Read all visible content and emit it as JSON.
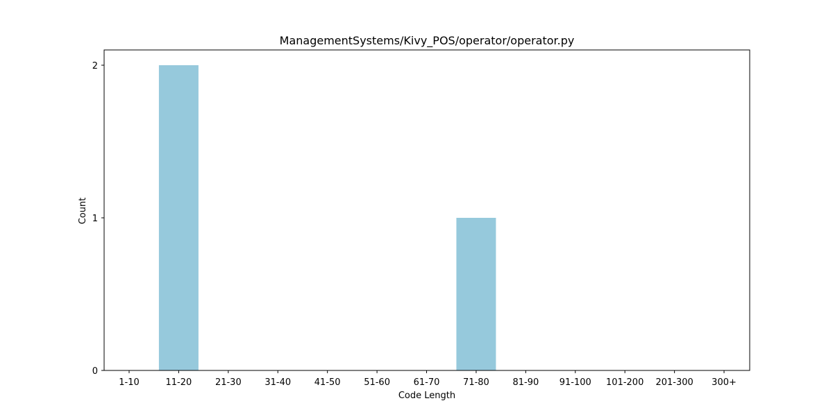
{
  "chart_data": {
    "type": "bar",
    "title": "ManagementSystems/Kivy_POS/operator/operator.py",
    "xlabel": "Code Length",
    "ylabel": "Count",
    "categories": [
      "1-10",
      "11-20",
      "21-30",
      "31-40",
      "41-50",
      "51-60",
      "61-70",
      "71-80",
      "81-90",
      "91-100",
      "101-200",
      "201-300",
      "300+"
    ],
    "values": [
      0,
      2,
      0,
      0,
      0,
      0,
      0,
      1,
      0,
      0,
      0,
      0,
      0
    ],
    "yticks": [
      0,
      1,
      2
    ],
    "ylim": [
      0,
      2.1
    ],
    "grid": false,
    "legend": "none",
    "bar_color": "#96c9dc"
  }
}
